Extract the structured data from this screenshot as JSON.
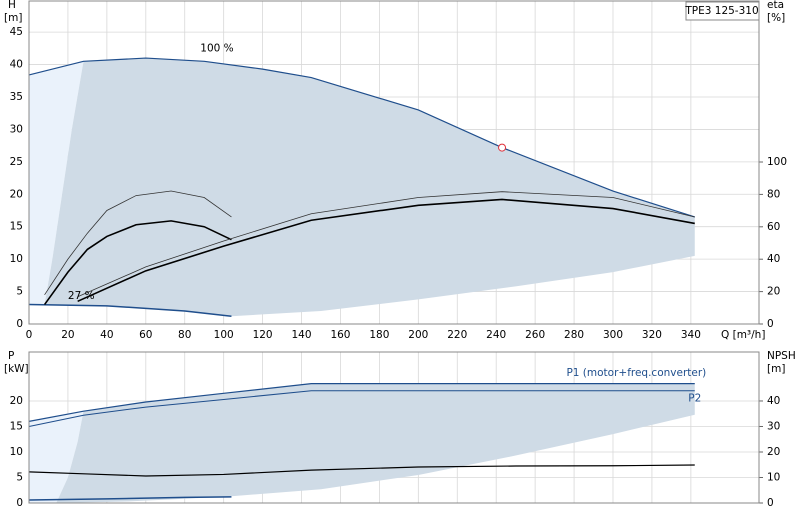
{
  "chart_data": [
    {
      "type": "line",
      "title": "TPE3 125-310",
      "y_label": "H",
      "y_unit": "[m]",
      "y2_label": "eta",
      "y2_unit": "[%]",
      "x_label": "Q [m³/h]",
      "xlim": [
        0,
        375
      ],
      "ylim": [
        0,
        49.8
      ],
      "y2lim": [
        0,
        199.4
      ],
      "grid": true,
      "xticks": [
        0,
        20,
        40,
        60,
        80,
        100,
        120,
        140,
        160,
        180,
        200,
        220,
        240,
        260,
        280,
        300,
        320,
        340
      ],
      "yticks": [
        0,
        5,
        10,
        15,
        20,
        25,
        30,
        35,
        40,
        45
      ],
      "y2ticks": [
        0,
        20,
        40,
        60,
        80,
        100
      ],
      "series": [
        {
          "kind": "area",
          "color": "#eaf2fb",
          "x": [
            0,
            28,
            22,
            17,
            12,
            8,
            0
          ],
          "values": [
            38.4,
            40.5,
            30,
            20,
            10,
            3,
            3
          ]
        },
        {
          "kind": "area",
          "color": "#cfdbe6",
          "x": [
            28,
            60,
            90,
            120,
            145,
            200,
            243,
            300,
            342,
            342,
            300,
            250,
            200,
            150,
            104,
            80,
            40,
            8,
            12,
            17,
            22
          ],
          "values": [
            40.5,
            41,
            40.5,
            39.3,
            38,
            33,
            27.2,
            20.5,
            16.5,
            10.5,
            8,
            5.8,
            3.8,
            2,
            1.2,
            2,
            2.8,
            3,
            10,
            20,
            30
          ]
        },
        {
          "kind": "line",
          "color": "#1f4e8c",
          "width": 1.2,
          "x": [
            0,
            28,
            60,
            90,
            120,
            145,
            200,
            243,
            300,
            342
          ],
          "values": [
            38.4,
            40.5,
            41,
            40.5,
            39.3,
            38,
            33,
            27.2,
            20.5,
            16.5
          ]
        },
        {
          "kind": "line",
          "color": "#1f4e8c",
          "width": 1.5,
          "x": [
            0,
            40,
            80,
            104
          ],
          "values": [
            3,
            2.8,
            2,
            1.2
          ]
        },
        {
          "kind": "line",
          "color": "#333333",
          "width": 0.8,
          "x": [
            8,
            20,
            30,
            40,
            55,
            73,
            90,
            104
          ],
          "values": [
            4.5,
            10,
            14,
            17.5,
            19.8,
            20.5,
            19.5,
            16.5
          ]
        },
        {
          "kind": "line",
          "color": "#000000",
          "width": 1.6,
          "x": [
            8,
            20,
            30,
            40,
            55,
            73,
            90,
            104
          ],
          "values": [
            3,
            8,
            11.5,
            13.5,
            15.3,
            15.9,
            15,
            13
          ]
        },
        {
          "kind": "line",
          "color": "#333333",
          "width": 0.8,
          "x": [
            25,
            60,
            100,
            145,
            200,
            243,
            300,
            342
          ],
          "values": [
            4.2,
            8.8,
            12.8,
            17,
            19.5,
            20.4,
            19.5,
            16.5
          ]
        },
        {
          "kind": "line",
          "color": "#000000",
          "width": 1.6,
          "x": [
            25,
            60,
            100,
            145,
            200,
            243,
            300,
            342
          ],
          "values": [
            3.5,
            8.2,
            12,
            16,
            18.3,
            19.2,
            17.8,
            15.5
          ]
        },
        {
          "kind": "point",
          "color": "#e0303a",
          "x": [
            243
          ],
          "values": [
            27.2
          ]
        }
      ],
      "annotations": [
        {
          "text": "100 %",
          "x": 88,
          "y": 42.5
        },
        {
          "text": "27 %",
          "x": 20,
          "y": 4.3
        }
      ]
    },
    {
      "type": "line",
      "y_label": "P",
      "y_unit": "[kW]",
      "y2_label": "NPSH",
      "y2_unit": "[m]",
      "xlim": [
        0,
        375
      ],
      "ylim": [
        0,
        29.6
      ],
      "y2lim": [
        0,
        59.2
      ],
      "grid": true,
      "yticks": [
        0,
        5,
        10,
        15,
        20
      ],
      "y2ticks": [
        0,
        10,
        20,
        30,
        40
      ],
      "series": [
        {
          "kind": "area",
          "color": "#eaf2fb",
          "x": [
            0,
            28,
            25,
            20,
            14,
            0
          ],
          "values": [
            16,
            18,
            12,
            5,
            0,
            0
          ]
        },
        {
          "kind": "area",
          "color": "#cfdbe6",
          "x": [
            28,
            60,
            100,
            145,
            200,
            342,
            342,
            300,
            250,
            200,
            150,
            100,
            50,
            14,
            20,
            25
          ],
          "values": [
            18,
            19.8,
            21.5,
            23.4,
            23.4,
            23.4,
            17.3,
            13.5,
            9.3,
            5.5,
            2.7,
            1.2,
            0.3,
            0,
            5,
            12
          ]
        },
        {
          "kind": "line",
          "color": "#1f4e8c",
          "width": 1.2,
          "x": [
            0,
            28,
            60,
            100,
            145,
            200,
            342
          ],
          "values": [
            16,
            18,
            19.8,
            21.5,
            23.4,
            23.4,
            23.4
          ]
        },
        {
          "kind": "line",
          "color": "#1f4e8c",
          "width": 1,
          "x": [
            0,
            28,
            60,
            100,
            145,
            200,
            342
          ],
          "values": [
            15,
            17.2,
            18.8,
            20.3,
            22,
            22,
            22
          ]
        },
        {
          "kind": "line",
          "color": "#1f4e8c",
          "width": 1.5,
          "x": [
            0,
            40,
            80,
            104
          ],
          "values": [
            0.6,
            0.8,
            1.1,
            1.2
          ]
        },
        {
          "kind": "line",
          "color": "#000000",
          "width": 1.2,
          "axis": "y2",
          "x": [
            0,
            30,
            60,
            100,
            145,
            200,
            250,
            300,
            342
          ],
          "values": [
            12.2,
            11.4,
            10.6,
            11.2,
            12.9,
            14.1,
            14.5,
            14.6,
            14.9
          ]
        }
      ],
      "annotations": [
        {
          "text": "P1 (motor+freq.converter)",
          "x": 312,
          "y": 25.5,
          "color": "#1f4e8c"
        },
        {
          "text": "P2",
          "x": 342,
          "y": 20.5,
          "color": "#1f4e8c"
        }
      ]
    }
  ]
}
